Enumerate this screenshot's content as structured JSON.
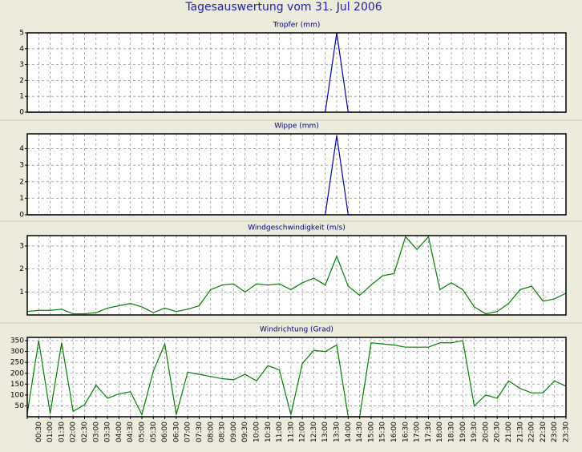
{
  "title": "Tagesauswertung vom 31. Jul 2006",
  "chart_data": [
    {
      "type": "line",
      "title": "Tropfer (mm)",
      "ylim": [
        0,
        5
      ],
      "yticks": [
        0,
        1,
        2,
        3,
        4,
        5
      ],
      "grid": true,
      "series": [
        {
          "name": "Tropfer",
          "color": "#0000c0",
          "values": [
            0,
            0,
            0,
            0,
            0,
            0,
            0,
            0,
            0,
            0,
            0,
            0,
            0,
            0,
            0,
            0,
            0,
            0,
            0,
            0,
            0,
            0,
            0,
            0,
            0,
            0,
            0,
            5,
            0,
            0,
            0,
            0,
            0,
            0,
            0,
            0,
            0,
            0,
            0,
            0,
            0,
            0,
            0,
            0,
            0,
            0,
            0,
            0
          ]
        }
      ]
    },
    {
      "type": "line",
      "title": "Wippe (mm)",
      "ylim": [
        0,
        4.9
      ],
      "yticks": [
        0,
        1,
        2,
        3,
        4
      ],
      "grid": true,
      "series": [
        {
          "name": "Wippe",
          "color": "#0000c0",
          "values": [
            0,
            0,
            0,
            0,
            0,
            0,
            0,
            0,
            0,
            0,
            0,
            0,
            0,
            0,
            0,
            0,
            0,
            0,
            0,
            0,
            0,
            0,
            0,
            0,
            0,
            0,
            0,
            4.8,
            0,
            0,
            0,
            0,
            0,
            0,
            0,
            0,
            0,
            0,
            0,
            0,
            0,
            0,
            0,
            0,
            0,
            0,
            0,
            0
          ]
        }
      ]
    },
    {
      "type": "line",
      "title": "Windgeschwindigkeit (m/s)",
      "ylim": [
        0,
        3.45
      ],
      "yticks": [
        1,
        2,
        3
      ],
      "grid": true,
      "series": [
        {
          "name": "Windgeschwindigkeit",
          "color": "#008000",
          "values": [
            0.15,
            0.2,
            0.2,
            0.25,
            0.05,
            0.05,
            0.1,
            0.3,
            0.4,
            0.5,
            0.35,
            0.1,
            0.3,
            0.15,
            0.25,
            0.4,
            1.1,
            1.3,
            1.35,
            1.0,
            1.35,
            1.3,
            1.35,
            1.1,
            1.4,
            1.6,
            1.3,
            2.55,
            1.25,
            0.85,
            1.3,
            1.7,
            1.8,
            3.4,
            2.85,
            3.4,
            1.1,
            1.4,
            1.1,
            0.35,
            0.05,
            0.15,
            0.5,
            1.1,
            1.25,
            0.6,
            0.7,
            0.95
          ]
        }
      ]
    },
    {
      "type": "line",
      "title": "Windrichtung (Grad)",
      "ylim": [
        0,
        365
      ],
      "yticks": [
        50,
        100,
        150,
        200,
        250,
        300,
        350
      ],
      "grid": true,
      "categories": [
        null,
        "00:30",
        "01:00",
        "01:30",
        "02:00",
        "02:30",
        "03:00",
        "03:30",
        "04:00",
        "04:30",
        "05:00",
        "05:30",
        "06:00",
        "06:30",
        "07:00",
        "07:30",
        "08:00",
        "08:30",
        "09:00",
        "09:30",
        "10:00",
        "10:30",
        "11:00",
        "11:30",
        "12:00",
        "12:30",
        "13:00",
        "13:30",
        "14:00",
        "14:30",
        "15:00",
        "15:30",
        "16:00",
        "16:30",
        "17:00",
        "17:30",
        "18:00",
        "18:30",
        "19:00",
        "19:30",
        "20:00",
        "20:30",
        "21:00",
        "21:30",
        "22:00",
        "22:30",
        "23:00",
        "23:30"
      ],
      "series": [
        {
          "name": "Windrichtung",
          "color": "#008000",
          "values": [
            15,
            350,
            15,
            340,
            25,
            55,
            145,
            85,
            105,
            115,
            10,
            210,
            335,
            10,
            205,
            195,
            185,
            175,
            170,
            195,
            165,
            235,
            215,
            10,
            245,
            305,
            300,
            330,
            0,
            0,
            340,
            335,
            330,
            320,
            320,
            320,
            340,
            340,
            350,
            50,
            100,
            85,
            165,
            130,
            110,
            110,
            165,
            140
          ]
        }
      ]
    }
  ]
}
